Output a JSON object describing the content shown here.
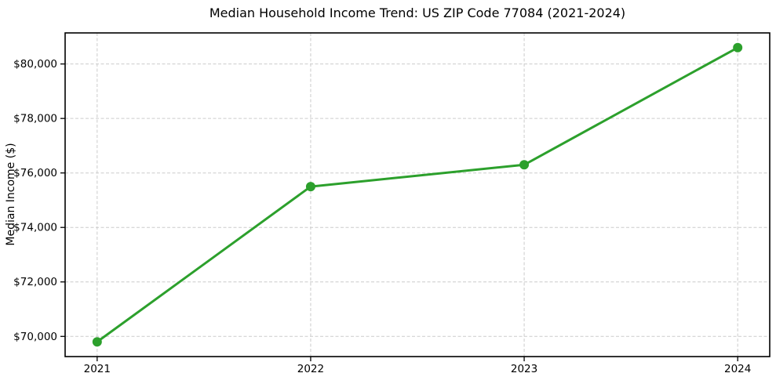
{
  "chart_data": {
    "type": "line",
    "title": "Median Household Income Trend: US ZIP Code 77084 (2021-2024)",
    "xlabel": "",
    "ylabel": "Median Income ($)",
    "series": [
      {
        "name": "Median household income",
        "x": [
          2021,
          2022,
          2023,
          2024
        ],
        "values": [
          69800,
          75500,
          76300,
          80600
        ]
      }
    ],
    "xticks": [
      2021,
      2022,
      2023,
      2024
    ],
    "xtick_labels": [
      "2021",
      "2022",
      "2023",
      "2024"
    ],
    "yticks": [
      70000,
      72000,
      74000,
      76000,
      78000,
      80000
    ],
    "ytick_labels": [
      "$70,000",
      "$72,000",
      "$74,000",
      "$76,000",
      "$78,000",
      "$80,000"
    ],
    "xlim": [
      2020.85,
      2024.15
    ],
    "ylim": [
      69260,
      81140
    ],
    "grid": true,
    "grid_style": "dashed",
    "legend_position": "none",
    "line_color": "#2ca02c",
    "marker": "circle",
    "grid_color": "#cccccc",
    "spine_color": "#000000",
    "text_color": "#000000",
    "background": "#ffffff"
  }
}
